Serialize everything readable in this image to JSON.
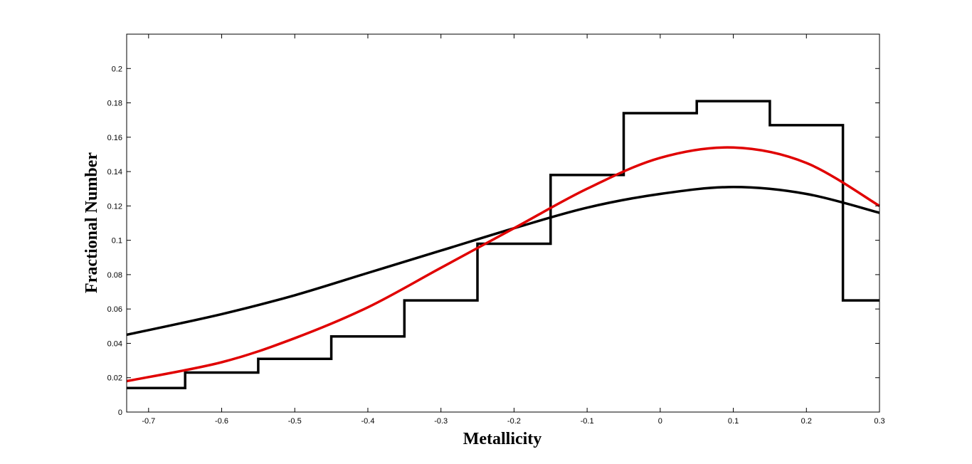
{
  "chart_data": {
    "type": "line",
    "title": "",
    "xlabel": "Metallicity",
    "ylabel": "Fractional Number",
    "xlim": [
      -0.73,
      0.3
    ],
    "ylim": [
      0,
      0.22
    ],
    "grid": false,
    "xticks": [
      -0.7,
      -0.6,
      -0.5,
      -0.4,
      -0.3,
      -0.2,
      -0.1,
      0,
      0.1,
      0.2,
      0.3
    ],
    "xtick_labels": [
      "-0.7",
      "-0.6",
      "-0.5",
      "-0.4",
      "-0.3",
      "-0.2",
      "-0.1",
      "0",
      "0.1",
      "0.2",
      "0.3"
    ],
    "yticks": [
      0,
      0.02,
      0.04,
      0.06,
      0.08,
      0.1,
      0.12,
      0.14,
      0.16,
      0.18,
      0.2
    ],
    "ytick_labels": [
      "0",
      "0.02",
      "0.04",
      "0.06",
      "0.08",
      "0.1",
      "0.12",
      "0.14",
      "0.16",
      "0.18",
      "0.2"
    ],
    "series": [
      {
        "kind": "histogram",
        "color": "#000000",
        "bins": [
          {
            "x0": -0.73,
            "x1": -0.65,
            "y": 0.014
          },
          {
            "x0": -0.65,
            "x1": -0.55,
            "y": 0.023
          },
          {
            "x0": -0.55,
            "x1": -0.45,
            "y": 0.031
          },
          {
            "x0": -0.45,
            "x1": -0.35,
            "y": 0.044
          },
          {
            "x0": -0.35,
            "x1": -0.25,
            "y": 0.065
          },
          {
            "x0": -0.25,
            "x1": -0.15,
            "y": 0.098
          },
          {
            "x0": -0.15,
            "x1": -0.05,
            "y": 0.138
          },
          {
            "x0": -0.05,
            "x1": 0.05,
            "y": 0.174
          },
          {
            "x0": 0.05,
            "x1": 0.15,
            "y": 0.181
          },
          {
            "x0": 0.15,
            "x1": 0.25,
            "y": 0.167
          },
          {
            "x0": 0.25,
            "x1": 0.3,
            "y": 0.065
          }
        ]
      },
      {
        "kind": "curve",
        "color": "#000000",
        "x": [
          -0.73,
          -0.6,
          -0.5,
          -0.4,
          -0.3,
          -0.2,
          -0.1,
          0.0,
          0.1,
          0.2,
          0.3
        ],
        "y": [
          0.045,
          0.057,
          0.068,
          0.081,
          0.094,
          0.107,
          0.119,
          0.127,
          0.131,
          0.127,
          0.116
        ]
      },
      {
        "kind": "curve",
        "color": "#e00000",
        "x": [
          -0.73,
          -0.6,
          -0.5,
          -0.4,
          -0.3,
          -0.2,
          -0.1,
          0.0,
          0.1,
          0.2,
          0.3
        ],
        "y": [
          0.018,
          0.029,
          0.043,
          0.061,
          0.084,
          0.107,
          0.13,
          0.148,
          0.154,
          0.145,
          0.12
        ]
      }
    ]
  }
}
